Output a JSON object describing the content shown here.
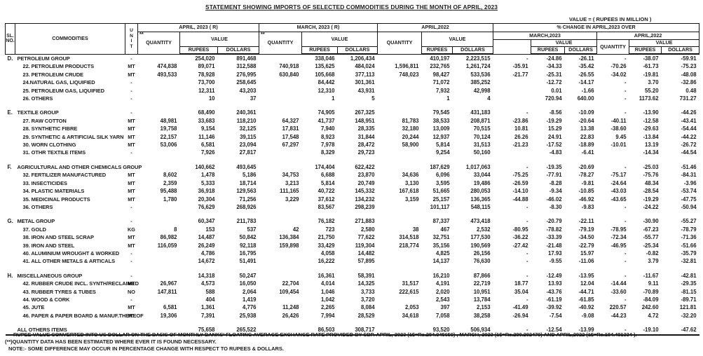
{
  "title": "STATEMENT SHOWING IMPORTS OF SELECTED COMMODITIES DURING THE MONTH OF APRIL, 2023",
  "value_note": {
    "line1": "VALUE = ( RUPEES IN MILLION )",
    "line2": "( U.S DOLLARS IN THOUSAND )"
  },
  "header": {
    "sl_no": "SL.\nNO.",
    "commodities": "COMMODITIES",
    "unit": "U\nN\nI\nT",
    "qty_note": "**",
    "quantity": "QUANTITY",
    "value": "VALUE",
    "rupees": "RUPEES",
    "dollars": "DOLLARS",
    "april_2023": "APRIL, 2023  ( R)",
    "march_2023": "MARCH, 2023  ( R)",
    "april_2022": "APRIL,2022",
    "pct_change": "% CHANGE IN APRIL,2023 OVER",
    "pct_march": "MARCH,2023",
    "pct_april": "APRIL,2022"
  },
  "rows": [
    {
      "kind": "group",
      "gap": false,
      "sl": "D.",
      "label": "PETROLEUM GROUP",
      "unit": "-",
      "v": [
        "",
        "254,020",
        "891,468",
        "",
        "338,046",
        "1,206,434",
        "",
        "410,197",
        "2,223,515",
        "-",
        "-24.86",
        "-26.11",
        "-",
        "-38.07",
        "-59.91"
      ]
    },
    {
      "kind": "item",
      "gap": false,
      "sl": "",
      "label": "22. PETROLEUM PRODUCTS",
      "unit": "MT",
      "v": [
        "474,838",
        "89,071",
        "312,588",
        "740,918",
        "135,625",
        "484,024",
        "1,596,811",
        "232,765",
        "1,261,724",
        "-35.91",
        "-34.33",
        "-35.42",
        "-70.26",
        "-61.73",
        "-75.23"
      ]
    },
    {
      "kind": "item",
      "gap": false,
      "sl": "",
      "label": "23. PETROLEUM CRUDE",
      "unit": "MT",
      "v": [
        "493,533",
        "78,928",
        "276,995",
        "630,840",
        "105,668",
        "377,113",
        "748,023",
        "98,427",
        "533,536",
        "-21.77",
        "-25.31",
        "-26.55",
        "-34.02",
        "-19.81",
        "-48.08"
      ]
    },
    {
      "kind": "item",
      "gap": false,
      "sl": "",
      "label": "24.NATURAL GAS, LIQUIFIED",
      "unit": "-",
      "v": [
        "",
        "73,700",
        "258,645",
        "",
        "84,442",
        "301,361",
        "",
        "71,072",
        "385,252",
        "",
        "-12.72",
        "-14.17",
        "-",
        "3.70",
        "-32.86"
      ]
    },
    {
      "kind": "item",
      "gap": false,
      "sl": "",
      "label": "25. PETROLEUM GAS, LIQUIFIED",
      "unit": "-",
      "v": [
        "",
        "12,311",
        "43,203",
        "",
        "12,310",
        "43,931",
        "",
        "7,932",
        "42,998",
        "",
        "0.01",
        "-1.66",
        "-",
        "55.20",
        "0.48"
      ]
    },
    {
      "kind": "item",
      "gap": false,
      "sl": "",
      "label": "26. OTHERS",
      "unit": "-",
      "v": [
        "",
        "10",
        "37",
        "",
        "1",
        "5",
        "",
        "1",
        "4",
        "",
        "720.94",
        "640.00",
        "-",
        "1173.62",
        "731.27"
      ]
    },
    {
      "kind": "group",
      "gap": true,
      "sl": "E.",
      "label": "TEXTILE GROUP",
      "unit": "-",
      "v": [
        "",
        "68,490",
        "240,361",
        "",
        "74,905",
        "267,325",
        "",
        "79,545",
        "431,183",
        "-",
        "-8.56",
        "-10.09",
        "-",
        "-13.90",
        "-44.26"
      ]
    },
    {
      "kind": "item",
      "gap": false,
      "sl": "",
      "label": "27. RAW COTTON",
      "unit": "MT",
      "v": [
        "48,981",
        "33,683",
        "118,210",
        "64,327",
        "41,737",
        "148,951",
        "81,783",
        "38,533",
        "208,871",
        "-23.86",
        "-19.29",
        "-20.64",
        "-40.11",
        "-12.58",
        "-43.41"
      ]
    },
    {
      "kind": "item",
      "gap": false,
      "sl": "",
      "label": "28. SYNTHETIC FIBRE",
      "unit": "MT",
      "v": [
        "19,758",
        "9,154",
        "32,125",
        "17,831",
        "7,940",
        "28,335",
        "32,180",
        "13,009",
        "70,515",
        "10.81",
        "15.29",
        "13.38",
        "-38.60",
        "-29.63",
        "-54.44"
      ]
    },
    {
      "kind": "item",
      "gap": false,
      "sl": "",
      "label": "29. SYNTHETIC & ARTIFICIAL SILK YARN",
      "unit": "MT",
      "v": [
        "22,157",
        "11,146",
        "39,115",
        "17,548",
        "8,923",
        "31,844",
        "20,244",
        "12,937",
        "70,124",
        "26.26",
        "24.91",
        "22.83",
        "9.45",
        "-13.84",
        "-44.22"
      ]
    },
    {
      "kind": "item",
      "gap": false,
      "sl": "",
      "label": "30. WORN CLOTHING",
      "unit": "MT",
      "v": [
        "53,006",
        "6,581",
        "23,094",
        "67,297",
        "7,978",
        "28,472",
        "58,900",
        "5,814",
        "31,513",
        "-21.23",
        "-17.52",
        "-18.89",
        "-10.01",
        "13.19",
        "-26.72"
      ]
    },
    {
      "kind": "item",
      "gap": false,
      "sl": "",
      "label": "31. OTHR TEXTILE ITEMS",
      "unit": "-",
      "v": [
        "",
        "7,926",
        "27,817",
        "",
        "8,329",
        "29,723",
        "",
        "9,254",
        "50,160",
        "",
        "-4.83",
        "-6.41",
        "",
        "-14.34",
        "-44.54"
      ]
    },
    {
      "kind": "group",
      "gap": true,
      "sl": "F.",
      "label": "AGRICULTURAL AND OTHER CHEMICALS GROUP",
      "unit": "-",
      "v": [
        "",
        "140,662",
        "493,645",
        "",
        "174,404",
        "622,422",
        "",
        "187,629",
        "1,017,063",
        "-",
        "-19.35",
        "-20.69",
        "-",
        "-25.03",
        "-51.46"
      ]
    },
    {
      "kind": "item",
      "gap": false,
      "sl": "",
      "label": "32. FERTILIZER MANUFACTURED",
      "unit": "MT",
      "v": [
        "8,602",
        "1,478",
        "5,186",
        "34,753",
        "6,688",
        "23,870",
        "34,636",
        "6,096",
        "33,044",
        "-75.25",
        "-77.91",
        "-78.27",
        "-75.17",
        "-75.76",
        "-84.31"
      ]
    },
    {
      "kind": "item",
      "gap": false,
      "sl": "",
      "label": "33. INSECTICIDES",
      "unit": "MT",
      "v": [
        "2,359",
        "5,333",
        "18,714",
        "3,213",
        "5,814",
        "20,749",
        "3,130",
        "3,595",
        "19,486",
        "-26.59",
        "-8.28",
        "-9.81",
        "-24.64",
        "48.34",
        "-3.96"
      ]
    },
    {
      "kind": "item",
      "gap": false,
      "sl": "",
      "label": "34. PLASTIC MATERIALS",
      "unit": "MT",
      "v": [
        "95,488",
        "36,918",
        "129,563",
        "111,165",
        "40,722",
        "145,332",
        "167,618",
        "51,665",
        "280,053",
        "-14.10",
        "-9.34",
        "-10.85",
        "-43.03",
        "-28.54",
        "-53.74"
      ]
    },
    {
      "kind": "item",
      "gap": false,
      "sl": "",
      "label": "35. MEDICINAL PRODUCTS",
      "unit": "MT",
      "v": [
        "1,780",
        "20,304",
        "71,256",
        "3,229",
        "37,612",
        "134,232",
        "3,159",
        "25,157",
        "136,365",
        "-44.88",
        "-46.02",
        "-46.92",
        "-43.65",
        "-19.29",
        "-47.75"
      ]
    },
    {
      "kind": "item",
      "gap": false,
      "sl": "",
      "label": "36. OTHERS",
      "unit": "-",
      "v": [
        "",
        "76,629",
        "268,926",
        "",
        "83,567",
        "298,239",
        "",
        "101,117",
        "548,115",
        "-",
        "-8.30",
        "-9.83",
        "-",
        "-24.22",
        "-50.94"
      ]
    },
    {
      "kind": "group",
      "gap": true,
      "sl": "G.",
      "label": "METAL GROUP",
      "unit": "-",
      "v": [
        "",
        "60,347",
        "211,783",
        "",
        "76,182",
        "271,883",
        "",
        "87,337",
        "473,418",
        "-",
        "-20.79",
        "-22.11",
        "-",
        "-30.90",
        "-55.27"
      ]
    },
    {
      "kind": "item",
      "gap": false,
      "sl": "",
      "label": "37. GOLD",
      "unit": "KG",
      "v": [
        "8",
        "153",
        "537",
        "42",
        "723",
        "2,580",
        "38",
        "467",
        "2,532",
        "-80.95",
        "-78.82",
        "-79.19",
        "-78.95",
        "-67.23",
        "-78.79"
      ]
    },
    {
      "kind": "item",
      "gap": false,
      "sl": "",
      "label": "38. IRON AND STEEL SCRAP",
      "unit": "MT",
      "v": [
        "86,982",
        "14,487",
        "50,842",
        "136,384",
        "21,750",
        "77,622",
        "314,518",
        "32,751",
        "177,530",
        "-36.22",
        "-33.39",
        "-34.50",
        "-72.34",
        "-55.77",
        "-71.36"
      ]
    },
    {
      "kind": "item",
      "gap": false,
      "sl": "",
      "label": "39. IRON AND STEEL",
      "unit": "MT",
      "v": [
        "116,059",
        "26,249",
        "92,118",
        "159,898",
        "33,429",
        "119,304",
        "218,774",
        "35,156",
        "190,569",
        "-27.42",
        "-21.48",
        "-22.79",
        "-46.95",
        "-25.34",
        "-51.66"
      ]
    },
    {
      "kind": "item",
      "gap": false,
      "sl": "",
      "label": "40. ALUMINIUM WROUGHT & WORKED",
      "unit": "-",
      "v": [
        "",
        "4,786",
        "16,795",
        "",
        "4,058",
        "14,482",
        "",
        "4,825",
        "26,156",
        "-",
        "17.93",
        "15.97",
        "-",
        "-0.82",
        "-35.79"
      ]
    },
    {
      "kind": "item",
      "gap": false,
      "sl": "",
      "label": "41. ALL OTHER METALS & ARTICALS",
      "unit": "-",
      "v": [
        "",
        "14,672",
        "51,491",
        "",
        "16,222",
        "57,895",
        "",
        "14,137",
        "76,630",
        "-",
        "-9.55",
        "-11.06",
        "-",
        "3.79",
        "-32.81"
      ]
    },
    {
      "kind": "group",
      "gap": true,
      "sl": "H.",
      "label": "MISCELLANEOUS GROUP",
      "unit": "-",
      "v": [
        "",
        "14,318",
        "50,247",
        "",
        "16,361",
        "58,391",
        "",
        "16,210",
        "87,866",
        "-",
        "-12.49",
        "-13.95",
        "-",
        "-11.67",
        "-42.81"
      ]
    },
    {
      "kind": "item",
      "gap": false,
      "sl": "",
      "label": "42. RUBBER CRUDE INCL. SYNTH/RECLAIMED",
      "unit": "MT",
      "v": [
        "26,967",
        "4,573",
        "16,050",
        "22,704",
        "4,014",
        "14,325",
        "31,517",
        "4,191",
        "22,719",
        "18.77",
        "13.93",
        "12.04",
        "-14.44",
        "9.11",
        "-29.35"
      ]
    },
    {
      "kind": "item",
      "gap": false,
      "sl": "",
      "label": "43. RUBBER TYRES & TUBES",
      "unit": "NO",
      "v": [
        "147,811",
        "588",
        "2,064",
        "109,454",
        "1,046",
        "3,733",
        "222,615",
        "2,020",
        "10,951",
        "35.04",
        "-43.76",
        "-44.71",
        "-33.60",
        "-70.89",
        "-81.15"
      ]
    },
    {
      "kind": "item",
      "gap": false,
      "sl": "",
      "label": "44. WOOD & CORK",
      "unit": "-",
      "v": [
        "",
        "404",
        "1,419",
        "",
        "1,042",
        "3,720",
        "",
        "2,543",
        "13,784",
        "-",
        "-61.19",
        "-61.85",
        "-",
        "-84.09",
        "-89.71"
      ]
    },
    {
      "kind": "item",
      "gap": false,
      "sl": "",
      "label": "45. JUTE",
      "unit": "MT",
      "v": [
        "6,581",
        "1,361",
        "4,776",
        "11,248",
        "2,265",
        "8,084",
        "2,053",
        "397",
        "2,153",
        "-41.49",
        "-39.92",
        "-40.92",
        "220.57",
        "242.60",
        "121.81"
      ]
    },
    {
      "kind": "item",
      "gap": false,
      "sl": "",
      "label": "46. PAPER & PAPER BOARD & MANUF.THEREOF",
      "unit": "MT",
      "v": [
        "19,306",
        "7,391",
        "25,938",
        "26,426",
        "7,994",
        "28,529",
        "34,618",
        "7,058",
        "38,258",
        "-26.94",
        "-7.54",
        "-9.08",
        "-44.23",
        "4.72",
        "-32.20"
      ]
    },
    {
      "kind": "total",
      "gap": true,
      "sl": "",
      "label": "ALL OTHERS ITEMS",
      "unit": "",
      "v": [
        "",
        "75,658",
        "265,522",
        "",
        "86,503",
        "308,717",
        "",
        "93,520",
        "506,934",
        "-",
        "-12.54",
        "-13.99",
        "-",
        "-19.10",
        "-47.62"
      ]
    }
  ],
  "footnotes": [
    "RUPEE VALUE  CONVERTED INTO US DOLLAR ON THE BASIS OF MONTHLY  BANKS' FLOATING AVERAGE EXCHANGE RATE PROVIDED BY SBP. APRIL, 2023 (1$=Rs.284.945659) , MARCH, 2023 (1$=Rs.280.202479) AND APRIL,2022 (1$=Rs.184.481334 ).",
    "(**)QUANTITY DATA HAS BEEN ESTIMATED WHERE EVER IT IS FOUND NECESSARY.",
    "NOTE:- SOME DIFFERENCE MAY OCCUR IN PERCENTAGE CHANGE WITH  RESPECT TO RUPEES & DOLLARS."
  ]
}
